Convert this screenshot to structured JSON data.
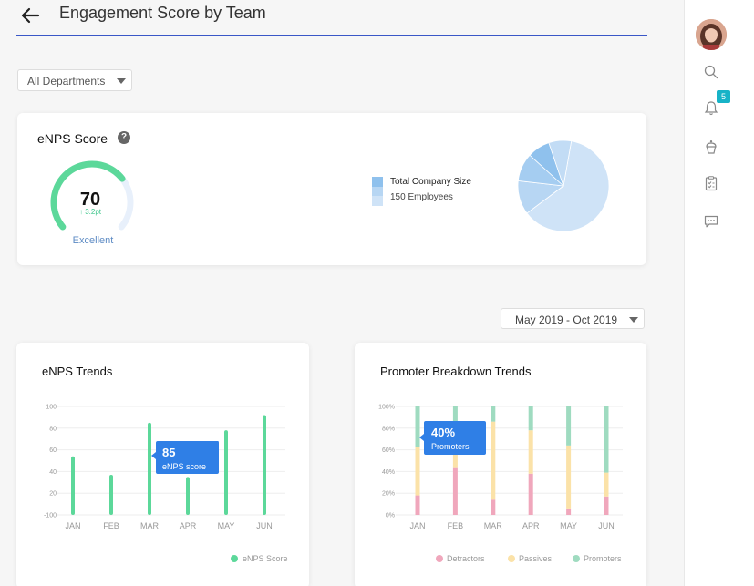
{
  "header": {
    "title": "Engagement Score by Team",
    "back_icon": "arrow-left-icon"
  },
  "filters": {
    "department": "All Departments",
    "date_range": "May 2019 - Oct 2019"
  },
  "enps_card": {
    "title": "eNPS Score",
    "score": "70",
    "change": "↑ 3.2pt",
    "rating": "Excellent",
    "score_fraction": 0.7,
    "legend_title": "Total Company Size",
    "legend_sub": "150 Employees",
    "pie_colors": [
      "#cfe3f7",
      "#b7d6f3",
      "#a5cdf1",
      "#8fc1ed",
      "#c2dcf5"
    ],
    "pie_values": [
      62,
      12,
      10,
      8,
      8
    ]
  },
  "trend_card": {
    "title": "eNPS Trends",
    "tooltip_value": "85",
    "tooltip_label": "eNPS score",
    "legend": "eNPS Score"
  },
  "promo_card": {
    "title": "Promoter Breakdown Trends",
    "tooltip_value": "40%",
    "tooltip_label": "Promoters",
    "legend": [
      "Detractors",
      "Passives",
      "Promoters"
    ]
  },
  "chart_data": [
    {
      "type": "bar",
      "title": "eNPS Trends",
      "categories": [
        "JAN",
        "FEB",
        "MAR",
        "APR",
        "MAY",
        "JUN"
      ],
      "yticks": [
        "100",
        "80",
        "60",
        "40",
        "20",
        "-100"
      ],
      "series": [
        {
          "name": "eNPS Score",
          "values": [
            54,
            37,
            85,
            35,
            78,
            92
          ],
          "color": "#5cd89a"
        }
      ]
    },
    {
      "type": "bar",
      "title": "Promoter Breakdown Trends",
      "categories": [
        "JAN",
        "FEB",
        "MAR",
        "APR",
        "MAY",
        "JUN"
      ],
      "yticks": [
        "100%",
        "80%",
        "60%",
        "40%",
        "20%",
        "0%"
      ],
      "stacked": true,
      "series": [
        {
          "name": "Detractors",
          "values": [
            18,
            44,
            14,
            38,
            6,
            17
          ],
          "color": "#f0a7bc"
        },
        {
          "name": "Passives",
          "values": [
            45,
            40,
            72,
            40,
            58,
            22
          ],
          "color": "#fbe2a8"
        },
        {
          "name": "Promoters",
          "values": [
            37,
            16,
            14,
            22,
            36,
            61
          ],
          "color": "#9fdbc0"
        }
      ]
    }
  ],
  "sidebar": {
    "icons": [
      "avatar",
      "search-icon",
      "bell-icon",
      "cupcake-icon",
      "clipboard-icon",
      "chat-icon"
    ],
    "notification_count": "5"
  }
}
